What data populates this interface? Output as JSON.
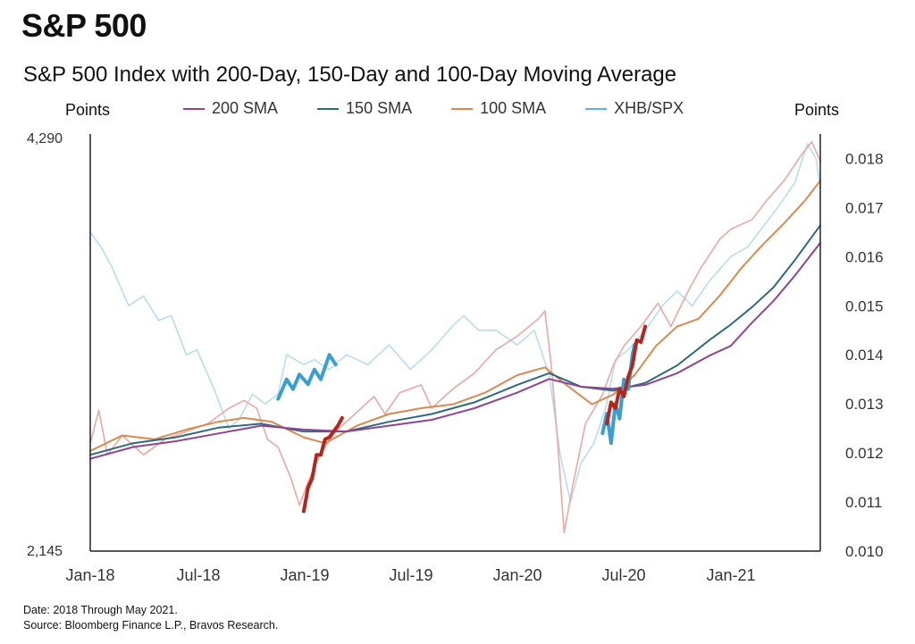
{
  "header": {
    "page_title": "S&P 500",
    "left_axis_unit": "Points",
    "right_axis_unit": "Points"
  },
  "footer": {
    "date_note": "Date: 2018 Through May 2021.",
    "source_note": "Source: Bloomberg Finance L.P., Bravos Research."
  },
  "chart_data": {
    "type": "line",
    "title": "S&P 500 Index with 200-Day, 150-Day and 100-Day Moving Average",
    "x_ticks": [
      "Jan-18",
      "Jul-18",
      "Jan-19",
      "Jul-19",
      "Jan-20",
      "Jul-20",
      "Jan-21"
    ],
    "x_range": [
      2018.0,
      2021.42
    ],
    "y_left": {
      "label": "Points",
      "min": 2145,
      "max": 4290,
      "tick_labels": [
        "4,290",
        "2,145"
      ]
    },
    "y_right": {
      "label": "Points",
      "min": 0.01,
      "max": 0.0185,
      "ticks": [
        "0.010",
        "0.011",
        "0.012",
        "0.013",
        "0.014",
        "0.015",
        "0.016",
        "0.017",
        "0.018"
      ]
    },
    "legend": [
      {
        "name": "200 SMA",
        "color": "#8e4592"
      },
      {
        "name": "150 SMA",
        "color": "#2f6a80"
      },
      {
        "name": "100 SMA",
        "color": "#d98a4e"
      },
      {
        "name": "XHB/SPX",
        "color": "#5bb5dd"
      }
    ],
    "series": [
      {
        "name": "S&P 500",
        "axis": "left",
        "color": "#e8a9a4",
        "points": [
          [
            2018.0,
            2700
          ],
          [
            2018.04,
            2870
          ],
          [
            2018.08,
            2640
          ],
          [
            2018.15,
            2740
          ],
          [
            2018.25,
            2640
          ],
          [
            2018.35,
            2720
          ],
          [
            2018.45,
            2760
          ],
          [
            2018.55,
            2800
          ],
          [
            2018.65,
            2880
          ],
          [
            2018.72,
            2920
          ],
          [
            2018.78,
            2880
          ],
          [
            2018.83,
            2720
          ],
          [
            2018.88,
            2680
          ],
          [
            2018.94,
            2520
          ],
          [
            2018.98,
            2380
          ],
          [
            2019.02,
            2500
          ],
          [
            2019.08,
            2650
          ],
          [
            2019.15,
            2760
          ],
          [
            2019.25,
            2860
          ],
          [
            2019.33,
            2940
          ],
          [
            2019.38,
            2850
          ],
          [
            2019.45,
            2960
          ],
          [
            2019.55,
            3000
          ],
          [
            2019.6,
            2880
          ],
          [
            2019.7,
            2980
          ],
          [
            2019.8,
            3060
          ],
          [
            2019.9,
            3180
          ],
          [
            2020.0,
            3250
          ],
          [
            2020.1,
            3340
          ],
          [
            2020.13,
            3380
          ],
          [
            2020.16,
            3100
          ],
          [
            2020.19,
            2700
          ],
          [
            2020.22,
            2240
          ],
          [
            2020.26,
            2480
          ],
          [
            2020.32,
            2800
          ],
          [
            2020.4,
            2950
          ],
          [
            2020.45,
            3100
          ],
          [
            2020.5,
            3200
          ],
          [
            2020.58,
            3300
          ],
          [
            2020.66,
            3420
          ],
          [
            2020.72,
            3300
          ],
          [
            2020.8,
            3480
          ],
          [
            2020.86,
            3600
          ],
          [
            2020.95,
            3750
          ],
          [
            2021.0,
            3800
          ],
          [
            2021.1,
            3850
          ],
          [
            2021.17,
            3950
          ],
          [
            2021.25,
            4050
          ],
          [
            2021.33,
            4180
          ],
          [
            2021.38,
            4250
          ],
          [
            2021.42,
            4150
          ]
        ]
      },
      {
        "name": "200 SMA",
        "axis": "left",
        "color": "#8e4592",
        "points": [
          [
            2018.0,
            2620
          ],
          [
            2018.2,
            2680
          ],
          [
            2018.4,
            2710
          ],
          [
            2018.6,
            2750
          ],
          [
            2018.8,
            2790
          ],
          [
            2019.0,
            2770
          ],
          [
            2019.2,
            2760
          ],
          [
            2019.4,
            2790
          ],
          [
            2019.6,
            2820
          ],
          [
            2019.8,
            2880
          ],
          [
            2020.0,
            2960
          ],
          [
            2020.15,
            3030
          ],
          [
            2020.3,
            2990
          ],
          [
            2020.45,
            2980
          ],
          [
            2020.6,
            3000
          ],
          [
            2020.75,
            3060
          ],
          [
            2020.9,
            3150
          ],
          [
            2021.0,
            3200
          ],
          [
            2021.1,
            3320
          ],
          [
            2021.2,
            3430
          ],
          [
            2021.3,
            3560
          ],
          [
            2021.42,
            3730
          ]
        ]
      },
      {
        "name": "150 SMA",
        "axis": "left",
        "color": "#2f6a80",
        "points": [
          [
            2018.0,
            2640
          ],
          [
            2018.2,
            2700
          ],
          [
            2018.4,
            2730
          ],
          [
            2018.6,
            2780
          ],
          [
            2018.8,
            2800
          ],
          [
            2019.0,
            2760
          ],
          [
            2019.2,
            2760
          ],
          [
            2019.4,
            2810
          ],
          [
            2019.6,
            2850
          ],
          [
            2019.8,
            2910
          ],
          [
            2020.0,
            3000
          ],
          [
            2020.15,
            3060
          ],
          [
            2020.3,
            2990
          ],
          [
            2020.45,
            2970
          ],
          [
            2020.6,
            3010
          ],
          [
            2020.75,
            3100
          ],
          [
            2020.9,
            3230
          ],
          [
            2021.0,
            3310
          ],
          [
            2021.1,
            3400
          ],
          [
            2021.2,
            3500
          ],
          [
            2021.3,
            3640
          ],
          [
            2021.42,
            3820
          ]
        ]
      },
      {
        "name": "100 SMA",
        "axis": "left",
        "color": "#d98a4e",
        "points": [
          [
            2018.0,
            2660
          ],
          [
            2018.15,
            2740
          ],
          [
            2018.3,
            2720
          ],
          [
            2018.45,
            2770
          ],
          [
            2018.6,
            2810
          ],
          [
            2018.72,
            2830
          ],
          [
            2018.85,
            2810
          ],
          [
            2019.0,
            2730
          ],
          [
            2019.1,
            2700
          ],
          [
            2019.25,
            2790
          ],
          [
            2019.4,
            2850
          ],
          [
            2019.55,
            2880
          ],
          [
            2019.7,
            2900
          ],
          [
            2019.85,
            2960
          ],
          [
            2020.0,
            3050
          ],
          [
            2020.13,
            3090
          ],
          [
            2020.23,
            3000
          ],
          [
            2020.35,
            2900
          ],
          [
            2020.45,
            2950
          ],
          [
            2020.55,
            3050
          ],
          [
            2020.65,
            3200
          ],
          [
            2020.75,
            3300
          ],
          [
            2020.85,
            3340
          ],
          [
            2020.95,
            3460
          ],
          [
            2021.05,
            3600
          ],
          [
            2021.15,
            3720
          ],
          [
            2021.25,
            3830
          ],
          [
            2021.35,
            3950
          ],
          [
            2021.42,
            4050
          ]
        ]
      },
      {
        "name": "XHB/SPX",
        "axis": "right",
        "color": "#b9dcef",
        "points": [
          [
            2018.0,
            0.0165
          ],
          [
            2018.05,
            0.0162
          ],
          [
            2018.1,
            0.0158
          ],
          [
            2018.18,
            0.015
          ],
          [
            2018.25,
            0.0152
          ],
          [
            2018.32,
            0.0147
          ],
          [
            2018.38,
            0.0148
          ],
          [
            2018.45,
            0.014
          ],
          [
            2018.5,
            0.0141
          ],
          [
            2018.58,
            0.0133
          ],
          [
            2018.65,
            0.0125
          ],
          [
            2018.7,
            0.0127
          ],
          [
            2018.76,
            0.0132
          ],
          [
            2018.82,
            0.013
          ],
          [
            2018.88,
            0.0132
          ],
          [
            2018.92,
            0.014
          ],
          [
            2019.0,
            0.0138
          ],
          [
            2019.05,
            0.0139
          ],
          [
            2019.12,
            0.0137
          ],
          [
            2019.2,
            0.014
          ],
          [
            2019.3,
            0.0138
          ],
          [
            2019.4,
            0.0142
          ],
          [
            2019.5,
            0.0137
          ],
          [
            2019.6,
            0.0141
          ],
          [
            2019.7,
            0.0146
          ],
          [
            2019.75,
            0.0148
          ],
          [
            2019.82,
            0.0145
          ],
          [
            2019.9,
            0.0145
          ],
          [
            2020.0,
            0.0142
          ],
          [
            2020.08,
            0.0145
          ],
          [
            2020.15,
            0.0136
          ],
          [
            2020.2,
            0.012
          ],
          [
            2020.25,
            0.011
          ],
          [
            2020.3,
            0.0118
          ],
          [
            2020.36,
            0.0122
          ],
          [
            2020.42,
            0.013
          ],
          [
            2020.46,
            0.0139
          ],
          [
            2020.52,
            0.0141
          ],
          [
            2020.6,
            0.0145
          ],
          [
            2020.68,
            0.015
          ],
          [
            2020.75,
            0.0153
          ],
          [
            2020.82,
            0.015
          ],
          [
            2020.9,
            0.0155
          ],
          [
            2021.0,
            0.016
          ],
          [
            2021.08,
            0.0162
          ],
          [
            2021.15,
            0.0166
          ],
          [
            2021.22,
            0.017
          ],
          [
            2021.3,
            0.0175
          ],
          [
            2021.36,
            0.0183
          ],
          [
            2021.4,
            0.018
          ],
          [
            2021.42,
            0.0174
          ]
        ]
      },
      {
        "name": "XHB/SPX highlight 2019",
        "axis": "right",
        "color": "#3a9fcf",
        "points": [
          [
            2018.88,
            0.0131
          ],
          [
            2018.92,
            0.0135
          ],
          [
            2018.95,
            0.0133
          ],
          [
            2018.98,
            0.0136
          ],
          [
            2019.02,
            0.0134
          ],
          [
            2019.05,
            0.0137
          ],
          [
            2019.08,
            0.0135
          ],
          [
            2019.12,
            0.014
          ],
          [
            2019.15,
            0.0138
          ]
        ]
      },
      {
        "name": "XHB/SPX highlight 2020",
        "axis": "right",
        "color": "#3a9fcf",
        "points": [
          [
            2020.4,
            0.0124
          ],
          [
            2020.42,
            0.0128
          ],
          [
            2020.44,
            0.0122
          ],
          [
            2020.46,
            0.013
          ],
          [
            2020.48,
            0.0127
          ],
          [
            2020.5,
            0.0135
          ],
          [
            2020.52,
            0.0133
          ],
          [
            2020.54,
            0.014
          ],
          [
            2020.55,
            0.0142
          ]
        ]
      },
      {
        "name": "S&P 500 highlight 2019",
        "axis": "left",
        "color": "#b3261e",
        "points": [
          [
            2019.0,
            2350
          ],
          [
            2019.02,
            2470
          ],
          [
            2019.04,
            2520
          ],
          [
            2019.06,
            2640
          ],
          [
            2019.08,
            2640
          ],
          [
            2019.1,
            2720
          ],
          [
            2019.12,
            2730
          ],
          [
            2019.14,
            2760
          ],
          [
            2019.16,
            2790
          ],
          [
            2019.18,
            2830
          ]
        ]
      },
      {
        "name": "S&P 500 highlight 2020",
        "axis": "left",
        "color": "#b3261e",
        "points": [
          [
            2020.42,
            2800
          ],
          [
            2020.44,
            2910
          ],
          [
            2020.46,
            2880
          ],
          [
            2020.48,
            2980
          ],
          [
            2020.5,
            2940
          ],
          [
            2020.52,
            3040
          ],
          [
            2020.54,
            3100
          ],
          [
            2020.56,
            3230
          ],
          [
            2020.58,
            3220
          ],
          [
            2020.6,
            3300
          ]
        ]
      }
    ]
  }
}
